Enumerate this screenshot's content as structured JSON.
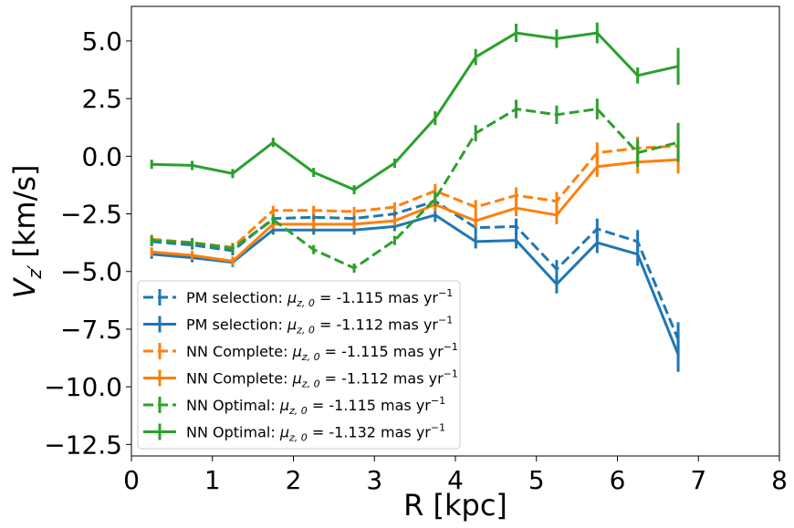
{
  "chart_data": {
    "type": "line",
    "title": "",
    "xlabel": "R [kpc]",
    "ylabel_main": "V",
    "ylabel_sub": "z′",
    "ylabel_unit": "[km/s]",
    "xlim": [
      0,
      8
    ],
    "ylim": [
      -13,
      6.5
    ],
    "xticks": [
      0,
      1,
      2,
      3,
      4,
      5,
      6,
      7,
      8
    ],
    "xtick_labels": [
      "0",
      "1",
      "2",
      "3",
      "4",
      "5",
      "6",
      "7",
      "8"
    ],
    "yticks": [
      5.0,
      2.5,
      0.0,
      -2.5,
      -5.0,
      -7.5,
      -10.0,
      -12.5
    ],
    "ytick_labels": [
      "5.0",
      "2.5",
      "0.0",
      "−2.5",
      "−5.0",
      "−7.5",
      "−10.0",
      "−12.5"
    ],
    "grid": false,
    "legend_position": "lower-left",
    "series": [
      {
        "name": "PM selection dashed",
        "label_prefix": "PM selection: ",
        "label_value": " = -1.115 mas yr",
        "color": "#1f77b4",
        "style": "dashed",
        "x": [
          0.25,
          0.75,
          1.25,
          1.75,
          2.25,
          2.75,
          3.25,
          3.75,
          4.25,
          4.75,
          5.25,
          5.75,
          6.25,
          6.75
        ],
        "y": [
          -3.7,
          -3.85,
          -4.1,
          -2.7,
          -2.65,
          -2.7,
          -2.5,
          -1.95,
          -3.1,
          -3.05,
          -4.9,
          -3.15,
          -3.7,
          -7.95
        ],
        "err": [
          0.2,
          0.2,
          0.2,
          0.2,
          0.2,
          0.2,
          0.2,
          0.3,
          0.3,
          0.35,
          0.4,
          0.45,
          0.5,
          0.75
        ]
      },
      {
        "name": "PM selection solid",
        "label_prefix": "PM selection: ",
        "label_value": " = -1.112 mas yr",
        "color": "#1f77b4",
        "style": "solid",
        "x": [
          0.25,
          0.75,
          1.25,
          1.75,
          2.25,
          2.75,
          3.25,
          3.75,
          4.25,
          4.75,
          5.25,
          5.75,
          6.25,
          6.75
        ],
        "y": [
          -4.25,
          -4.4,
          -4.6,
          -3.2,
          -3.2,
          -3.2,
          -3.05,
          -2.55,
          -3.7,
          -3.65,
          -5.55,
          -3.75,
          -4.25,
          -8.6
        ],
        "err": [
          0.2,
          0.2,
          0.2,
          0.2,
          0.2,
          0.2,
          0.2,
          0.3,
          0.3,
          0.35,
          0.4,
          0.45,
          0.5,
          0.75
        ]
      },
      {
        "name": "NN Complete dashed",
        "label_prefix": "NN Complete: ",
        "label_value": " = -1.115 mas yr",
        "color": "#ff7f0e",
        "style": "dashed",
        "x": [
          0.25,
          0.75,
          1.25,
          1.75,
          2.25,
          2.75,
          3.25,
          3.75,
          4.25,
          4.75,
          5.25,
          5.75,
          6.25,
          6.75
        ],
        "y": [
          -3.6,
          -3.75,
          -3.95,
          -2.35,
          -2.35,
          -2.4,
          -2.2,
          -1.5,
          -2.2,
          -1.7,
          -1.95,
          0.15,
          0.35,
          0.45
        ],
        "err": [
          0.2,
          0.2,
          0.2,
          0.2,
          0.2,
          0.2,
          0.2,
          0.3,
          0.3,
          0.35,
          0.4,
          0.45,
          0.5,
          0.6
        ]
      },
      {
        "name": "NN Complete solid",
        "label_prefix": "NN Complete: ",
        "label_value": " = -1.112 mas yr",
        "color": "#ff7f0e",
        "style": "solid",
        "x": [
          0.25,
          0.75,
          1.25,
          1.75,
          2.25,
          2.75,
          3.25,
          3.75,
          4.25,
          4.75,
          5.25,
          5.75,
          6.25,
          6.75
        ],
        "y": [
          -4.15,
          -4.3,
          -4.55,
          -2.95,
          -2.95,
          -2.95,
          -2.8,
          -2.1,
          -2.8,
          -2.25,
          -2.55,
          -0.45,
          -0.25,
          -0.15
        ],
        "err": [
          0.2,
          0.2,
          0.2,
          0.2,
          0.2,
          0.2,
          0.2,
          0.3,
          0.3,
          0.35,
          0.4,
          0.45,
          0.5,
          0.6
        ]
      },
      {
        "name": "NN Optimal dashed",
        "label_prefix": "NN Optimal: ",
        "label_value": " = -1.115 mas yr",
        "color": "#2ca02c",
        "style": "dashed",
        "x": [
          0.25,
          0.75,
          1.25,
          1.75,
          2.25,
          2.75,
          3.25,
          3.75,
          4.25,
          4.75,
          5.25,
          5.75,
          6.25,
          6.75
        ],
        "y": [
          -3.65,
          -3.75,
          -4.0,
          -2.75,
          -4.05,
          -4.85,
          -3.65,
          -1.85,
          1.0,
          2.05,
          1.8,
          2.05,
          0.15,
          0.6
        ],
        "err": [
          0.2,
          0.2,
          0.2,
          0.2,
          0.2,
          0.2,
          0.2,
          0.3,
          0.35,
          0.4,
          0.4,
          0.45,
          0.6,
          0.85
        ]
      },
      {
        "name": "NN Optimal solid",
        "label_prefix": "NN Optimal: ",
        "label_value": " = -1.132 mas yr",
        "color": "#2ca02c",
        "style": "solid",
        "x": [
          0.25,
          0.75,
          1.25,
          1.75,
          2.25,
          2.75,
          3.25,
          3.75,
          4.25,
          4.75,
          5.25,
          5.75,
          6.25,
          6.75
        ],
        "y": [
          -0.35,
          -0.4,
          -0.75,
          0.6,
          -0.7,
          -1.45,
          -0.3,
          1.65,
          4.3,
          5.35,
          5.1,
          5.35,
          3.5,
          3.9
        ],
        "err": [
          0.2,
          0.2,
          0.2,
          0.2,
          0.2,
          0.2,
          0.2,
          0.3,
          0.35,
          0.4,
          0.4,
          0.45,
          0.35,
          0.8
        ]
      }
    ]
  }
}
